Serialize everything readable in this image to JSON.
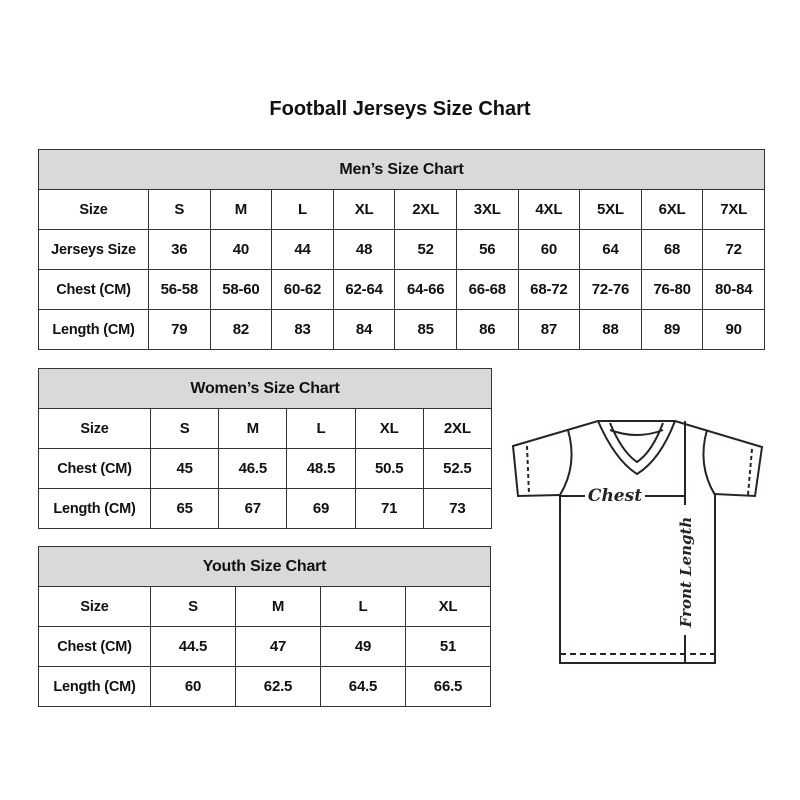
{
  "title": "Football Jerseys Size Chart",
  "men": {
    "header": "Men’s Size Chart",
    "rows": [
      {
        "label": "Size",
        "values": [
          "S",
          "M",
          "L",
          "XL",
          "2XL",
          "3XL",
          "4XL",
          "5XL",
          "6XL",
          "7XL"
        ]
      },
      {
        "label": "Jerseys Size",
        "values": [
          "36",
          "40",
          "44",
          "48",
          "52",
          "56",
          "60",
          "64",
          "68",
          "72"
        ]
      },
      {
        "label": "Chest (CM)",
        "values": [
          "56-58",
          "58-60",
          "60-62",
          "62-64",
          "64-66",
          "66-68",
          "68-72",
          "72-76",
          "76-80",
          "80-84"
        ]
      },
      {
        "label": "Length (CM)",
        "values": [
          "79",
          "82",
          "83",
          "84",
          "85",
          "86",
          "87",
          "88",
          "89",
          "90"
        ]
      }
    ]
  },
  "women": {
    "header": "Women’s Size Chart",
    "rows": [
      {
        "label": "Size",
        "values": [
          "S",
          "M",
          "L",
          "XL",
          "2XL"
        ]
      },
      {
        "label": "Chest (CM)",
        "values": [
          "45",
          "46.5",
          "48.5",
          "50.5",
          "52.5"
        ]
      },
      {
        "label": "Length (CM)",
        "values": [
          "65",
          "67",
          "69",
          "71",
          "73"
        ]
      }
    ]
  },
  "youth": {
    "header": "Youth Size Chart",
    "rows": [
      {
        "label": "Size",
        "values": [
          "S",
          "M",
          "L",
          "XL"
        ]
      },
      {
        "label": "Chest (CM)",
        "values": [
          "44.5",
          "47",
          "49",
          "51"
        ]
      },
      {
        "label": "Length (CM)",
        "values": [
          "60",
          "62.5",
          "64.5",
          "66.5"
        ]
      }
    ]
  },
  "diagram": {
    "chest_label": "Chest",
    "length_label": "Front Length"
  },
  "colors": {
    "header_bg": "#d9d9d9",
    "border": "#333333",
    "text": "#111111"
  }
}
